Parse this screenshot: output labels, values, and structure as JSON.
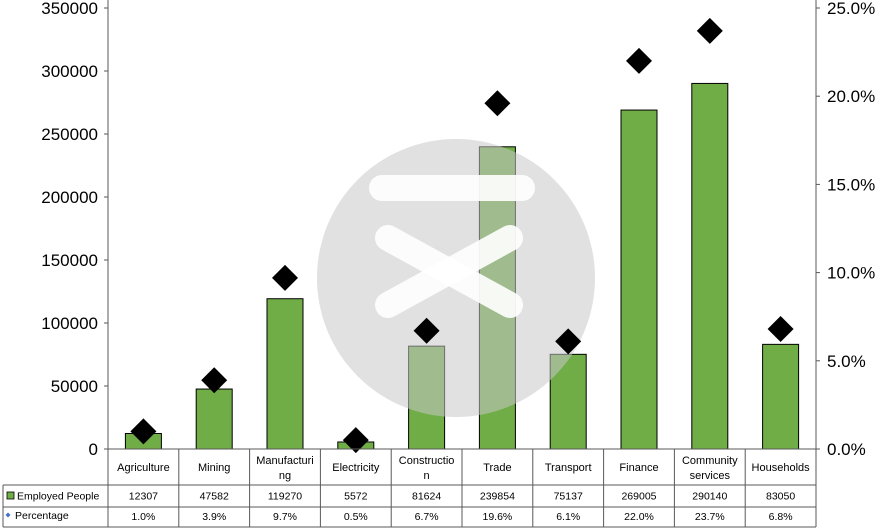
{
  "chart_data": {
    "type": "bar",
    "categories": [
      "Agriculture",
      "Mining",
      "Manufacturing",
      "Electricity",
      "Construction",
      "Trade",
      "Transport",
      "Finance",
      "Community services",
      "Households"
    ],
    "category_display": [
      [
        "Agriculture"
      ],
      [
        "Mining"
      ],
      [
        "Manufacturi",
        "ng"
      ],
      [
        "Electricity"
      ],
      [
        "Constructio",
        "n"
      ],
      [
        "Trade"
      ],
      [
        "Transport"
      ],
      [
        "Finance"
      ],
      [
        "Community",
        "services"
      ],
      [
        "Households"
      ]
    ],
    "series": [
      {
        "name": "Employed People",
        "type": "bar",
        "axis": "left",
        "color": "#70ad47",
        "values": [
          12307,
          47582,
          119270,
          5572,
          81624,
          239854,
          75137,
          269005,
          290140,
          83050
        ],
        "labels": [
          "12307",
          "47582",
          "119270",
          "5572",
          "81624",
          "239854",
          "75137",
          "269005",
          "290140",
          "83050"
        ]
      },
      {
        "name": "Percentage",
        "type": "scatter",
        "marker": "diamond",
        "axis": "right",
        "color": "#000000",
        "legend_color": "#4472c4",
        "values": [
          1.0,
          3.9,
          9.7,
          0.5,
          6.7,
          19.6,
          6.1,
          22.0,
          23.7,
          6.8
        ],
        "labels": [
          "1.0%",
          "3.9%",
          "9.7%",
          "0.5%",
          "6.7%",
          "19.6%",
          "6.1%",
          "22.0%",
          "23.7%",
          "6.8%"
        ]
      }
    ],
    "y_left": {
      "min": 0,
      "max": 350000,
      "ticks": [
        "0",
        "50000",
        "100000",
        "150000",
        "200000",
        "250000",
        "300000",
        "350000"
      ]
    },
    "y_right": {
      "min": 0,
      "max": 25,
      "ticks": [
        "0.0%",
        "5.0%",
        "10.0%",
        "15.0%",
        "20.0%",
        "25.0%"
      ]
    },
    "grid": false,
    "data_table": true,
    "watermark": true
  }
}
